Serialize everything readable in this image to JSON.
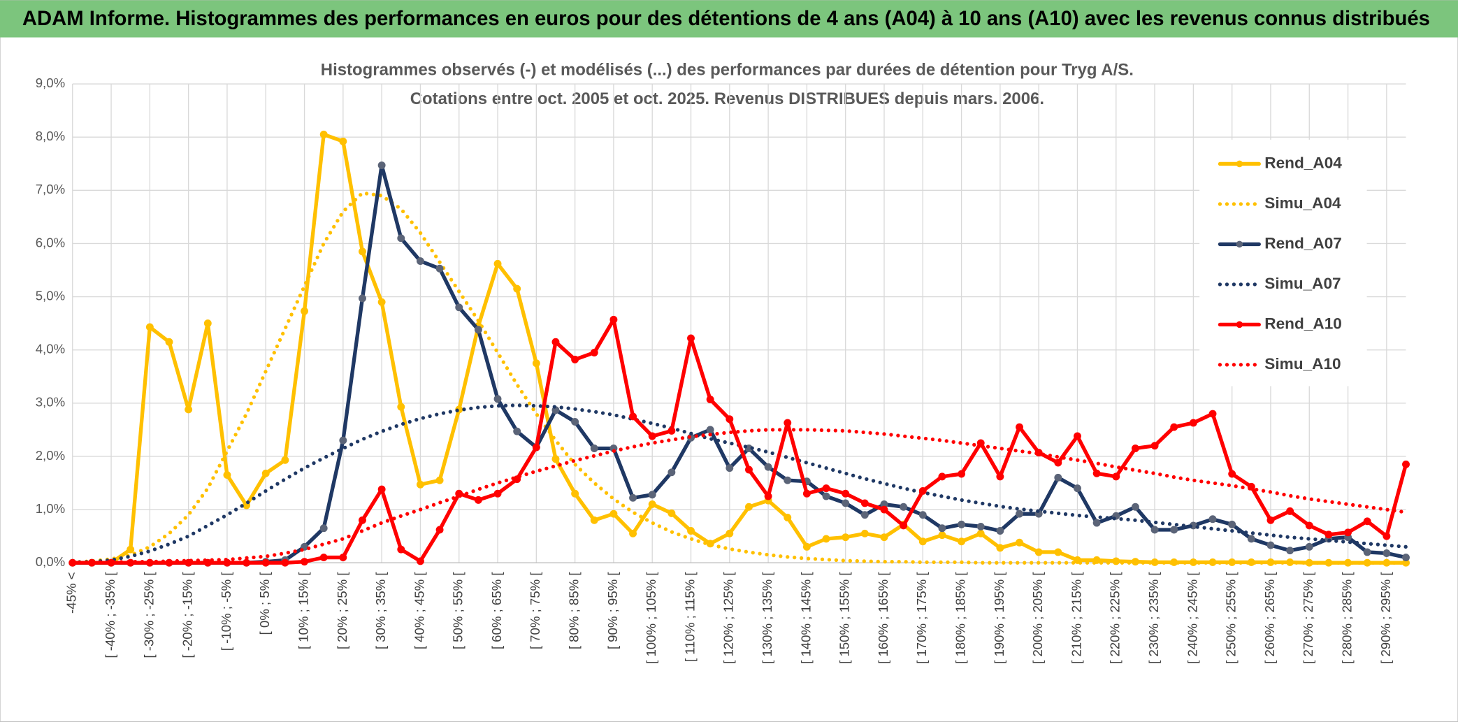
{
  "chart_data": {
    "type": "line",
    "title": "ADAM Informe. Histogrammes des performances en euros pour des détentions de 4 ans (A04) à 10 ans (A10) avec les revenus connus distribués",
    "subtitle": [
      "Histogrammes observés (-) et modélisés (...) des performances par durées de détention pour Tryg A/S.",
      "Cotations entre oct. 2005 et oct. 2025. Revenus DISTRIBUES depuis mars. 2006."
    ],
    "categories": [
      "-45% <",
      null,
      "[ -40% ; -35% [",
      null,
      "[ -30% ; -25% [",
      null,
      "[ -20% ; -15% [",
      null,
      "[ -10% ; -5% [",
      null,
      "[ 0% ; 5% [",
      null,
      "[ 10% ; 15% [",
      null,
      "[ 20% ; 25% [",
      null,
      "[ 30% ; 35% [",
      null,
      "[ 40% ; 45% [",
      null,
      "[ 50% ; 55% [",
      null,
      "[ 60% ; 65% [",
      null,
      "[ 70% ; 75% [",
      null,
      "[ 80% ; 85% [",
      null,
      "[ 90% ; 95% [",
      null,
      "[ 100% ; 105% [",
      null,
      "[ 110% ; 115% [",
      null,
      "[ 120% ; 125% [",
      null,
      "[ 130% ; 135% [",
      null,
      "[ 140% ; 145% [",
      null,
      "[ 150% ; 155% [",
      null,
      "[ 160% ; 165% [",
      null,
      "[ 170% ; 175% [",
      null,
      "[ 180% ; 185% [",
      null,
      "[ 190% ; 195% [",
      null,
      "[ 200% ; 205% [",
      null,
      "[ 210% ; 215% [",
      null,
      "[ 220% ; 225% [",
      null,
      "[ 230% ; 235% [",
      null,
      "[ 240% ; 245% [",
      null,
      "[ 250% ; 255% [",
      null,
      "[ 260% ; 265% [",
      null,
      "[ 270% ; 275% [",
      null,
      "[ 280% ; 285% [",
      null,
      "[ 290% ; 295% [",
      null
    ],
    "ylim": [
      0,
      9
    ],
    "yticks": [
      {
        "value": 0,
        "label": "0,0%"
      },
      {
        "value": 1,
        "label": "1,0%"
      },
      {
        "value": 2,
        "label": "2,0%"
      },
      {
        "value": 3,
        "label": "3,0%"
      },
      {
        "value": 4,
        "label": "4,0%"
      },
      {
        "value": 5,
        "label": "5,0%"
      },
      {
        "value": 6,
        "label": "6,0%"
      },
      {
        "value": 7,
        "label": "7,0%"
      },
      {
        "value": 8,
        "label": "8,0%"
      },
      {
        "value": 9,
        "label": "9,0%"
      }
    ],
    "grid": true,
    "legend": "right",
    "series": [
      {
        "name": "Rend_A04",
        "color": "#FFC000",
        "marker_color": "#FFC000",
        "style": "solid",
        "markers": true,
        "values": [
          0,
          0,
          0,
          0.25,
          4.43,
          4.15,
          2.88,
          4.5,
          1.65,
          1.08,
          1.68,
          1.93,
          4.73,
          8.05,
          7.92,
          5.85,
          4.9,
          2.93,
          1.47,
          1.55,
          2.88,
          4.45,
          5.62,
          5.15,
          3.75,
          1.95,
          1.3,
          0.8,
          0.92,
          0.55,
          1.1,
          0.93,
          0.6,
          0.36,
          0.55,
          1.05,
          1.17,
          0.85,
          0.3,
          0.45,
          0.48,
          0.55,
          0.48,
          0.72,
          0.4,
          0.52,
          0.4,
          0.55,
          0.28,
          0.38,
          0.2,
          0.2,
          0.05,
          0.05,
          0.03,
          0.02,
          0.01,
          0.01,
          0.01,
          0.01,
          0.01,
          0.01,
          0.01,
          0.01,
          0,
          0,
          0,
          0,
          0,
          0
        ]
      },
      {
        "name": "Simu_A04",
        "color": "#FFC000",
        "style": "dotted",
        "markers": false,
        "values": [
          0.01,
          0.03,
          0.07,
          0.14,
          0.3,
          0.55,
          0.9,
          1.4,
          2.1,
          2.8,
          3.6,
          4.4,
          5.2,
          6.0,
          6.6,
          6.95,
          6.9,
          6.65,
          6.2,
          5.65,
          5.1,
          4.55,
          3.95,
          3.35,
          2.8,
          2.3,
          1.85,
          1.5,
          1.2,
          0.95,
          0.75,
          0.58,
          0.45,
          0.34,
          0.26,
          0.2,
          0.15,
          0.11,
          0.08,
          0.06,
          0.04,
          0.03,
          0.02,
          0.02,
          0.01,
          0.01,
          0.01,
          0,
          0,
          0,
          0,
          0,
          0,
          0,
          0,
          0,
          0,
          0,
          0,
          0,
          0,
          0,
          0,
          0,
          0,
          0,
          0,
          0,
          0,
          0
        ]
      },
      {
        "name": "Rend_A07",
        "color": "#1F3864",
        "marker_color": "#5B6478",
        "style": "solid",
        "markers": true,
        "values": [
          0,
          0,
          0,
          0,
          0,
          0,
          0,
          0,
          0,
          0,
          0.02,
          0.05,
          0.3,
          0.65,
          2.3,
          4.97,
          7.47,
          6.1,
          5.67,
          5.53,
          4.8,
          4.38,
          3.08,
          2.47,
          2.17,
          2.87,
          2.65,
          2.15,
          2.15,
          1.22,
          1.28,
          1.7,
          2.35,
          2.5,
          1.78,
          2.15,
          1.8,
          1.55,
          1.53,
          1.25,
          1.12,
          0.9,
          1.1,
          1.05,
          0.9,
          0.65,
          0.72,
          0.68,
          0.6,
          0.92,
          0.92,
          1.6,
          1.4,
          0.75,
          0.88,
          1.05,
          0.62,
          0.62,
          0.7,
          0.82,
          0.72,
          0.45,
          0.33,
          0.23,
          0.3,
          0.45,
          0.48,
          0.2,
          0.18,
          0.1
        ]
      },
      {
        "name": "Simu_A07",
        "color": "#1F3864",
        "style": "dotted",
        "markers": false,
        "values": [
          0.01,
          0.02,
          0.05,
          0.12,
          0.22,
          0.35,
          0.5,
          0.7,
          0.9,
          1.12,
          1.35,
          1.57,
          1.78,
          1.97,
          2.15,
          2.32,
          2.47,
          2.6,
          2.71,
          2.8,
          2.87,
          2.92,
          2.95,
          2.96,
          2.95,
          2.93,
          2.89,
          2.84,
          2.78,
          2.7,
          2.62,
          2.53,
          2.43,
          2.33,
          2.25,
          2.17,
          2.08,
          1.98,
          1.88,
          1.78,
          1.68,
          1.58,
          1.49,
          1.4,
          1.32,
          1.25,
          1.18,
          1.12,
          1.06,
          1.01,
          0.97,
          0.93,
          0.89,
          0.86,
          0.83,
          0.8,
          0.76,
          0.72,
          0.68,
          0.64,
          0.6,
          0.56,
          0.52,
          0.48,
          0.45,
          0.42,
          0.39,
          0.36,
          0.33,
          0.3
        ]
      },
      {
        "name": "Rend_A10",
        "color": "#FF0000",
        "marker_color": "#FF0000",
        "style": "solid",
        "markers": true,
        "values": [
          0,
          0,
          0,
          0,
          0,
          0,
          0,
          0,
          0,
          0,
          0,
          0,
          0.02,
          0.1,
          0.1,
          0.8,
          1.38,
          0.25,
          0.03,
          0.62,
          1.3,
          1.18,
          1.3,
          1.57,
          2.17,
          4.15,
          3.82,
          3.95,
          4.57,
          2.75,
          2.38,
          2.48,
          4.22,
          3.07,
          2.7,
          1.75,
          1.25,
          2.63,
          1.3,
          1.4,
          1.3,
          1.12,
          1.0,
          0.7,
          1.35,
          1.62,
          1.67,
          2.25,
          1.62,
          2.55,
          2.07,
          1.88,
          2.38,
          1.68,
          1.62,
          2.15,
          2.2,
          2.55,
          2.63,
          2.8,
          1.67,
          1.43,
          0.8,
          0.97,
          0.7,
          0.53,
          0.57,
          0.78,
          0.5,
          1.85
        ]
      },
      {
        "name": "Simu_A10",
        "color": "#FF0000",
        "style": "dotted",
        "markers": false,
        "values": [
          0,
          0.01,
          0.01,
          0.02,
          0.02,
          0.03,
          0.04,
          0.05,
          0.06,
          0.09,
          0.12,
          0.18,
          0.25,
          0.35,
          0.45,
          0.6,
          0.75,
          0.88,
          1.0,
          1.13,
          1.25,
          1.38,
          1.5,
          1.61,
          1.72,
          1.82,
          1.92,
          2.01,
          2.1,
          2.18,
          2.25,
          2.31,
          2.37,
          2.41,
          2.45,
          2.48,
          2.5,
          2.5,
          2.5,
          2.49,
          2.48,
          2.45,
          2.42,
          2.38,
          2.34,
          2.3,
          2.25,
          2.2,
          2.15,
          2.1,
          2.05,
          1.99,
          1.93,
          1.87,
          1.8,
          1.74,
          1.68,
          1.61,
          1.55,
          1.5,
          1.45,
          1.39,
          1.33,
          1.26,
          1.2,
          1.15,
          1.1,
          1.05,
          1.0,
          0.95
        ]
      }
    ]
  }
}
